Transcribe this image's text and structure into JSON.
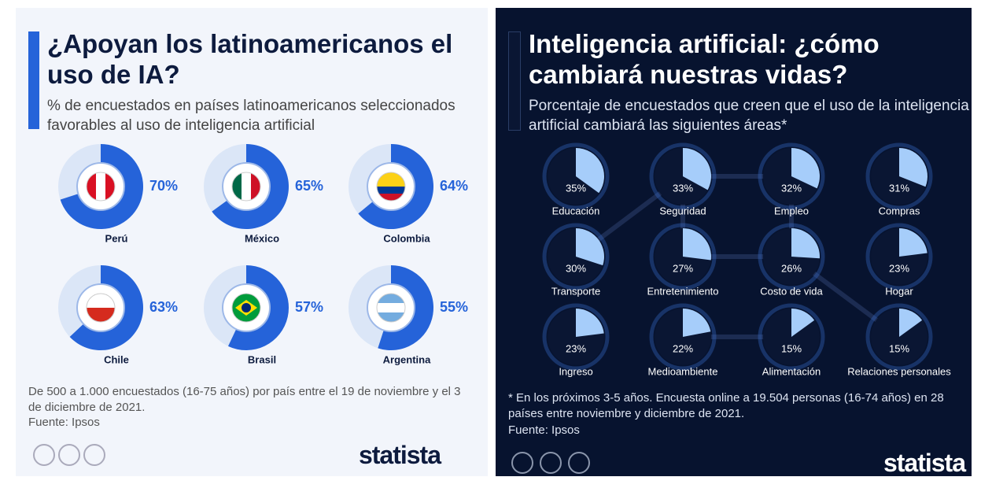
{
  "chart_data": [
    {
      "type": "pie",
      "title": "¿Apoyan los latinoamericanos el uso de IA?",
      "subtitle": "% de encuestados en países latinoamericanos seleccionados favorables al uso de inteligencia artificial",
      "categories": [
        "Perú",
        "México",
        "Colombia",
        "Chile",
        "Brasil",
        "Argentina"
      ],
      "values": [
        70,
        65,
        64,
        63,
        57,
        55
      ],
      "value_labels": [
        "70%",
        "65%",
        "64%",
        "63%",
        "57%",
        "55%"
      ],
      "color": "#2563d9",
      "note": "De 500 a 1.000 encuestados (16-75 años) por país entre el 19 de noviembre y el 3 de diciembre de 2021.",
      "source": "Fuente: Ipsos",
      "brand": "statista"
    },
    {
      "type": "pie",
      "title": "Inteligencia artificial: ¿cómo cambiará nuestras vidas?",
      "subtitle": "Porcentaje de encuestados que creen que el uso de la inteligencia artificial cambiará las siguientes áreas*",
      "categories": [
        "Educación",
        "Seguridad",
        "Empleo",
        "Compras",
        "Transporte",
        "Entretenimiento",
        "Costo de vida",
        "Hogar",
        "Ingreso",
        "Medioambiente",
        "Alimentación",
        "Relaciones personales"
      ],
      "values": [
        35,
        33,
        32,
        31,
        30,
        27,
        26,
        23,
        23,
        22,
        15,
        15
      ],
      "value_labels": [
        "35%",
        "33%",
        "32%",
        "31%",
        "30%",
        "27%",
        "26%",
        "23%",
        "23%",
        "22%",
        "15%",
        "15%"
      ],
      "color": "#a6cdfa",
      "note": "* En los próximos 3-5 años. Encuesta online a 19.504 personas (16-74 años) en 28 países entre noviembre y diciembre de 2021.",
      "source": "Fuente: Ipsos",
      "brand": "statista"
    }
  ]
}
